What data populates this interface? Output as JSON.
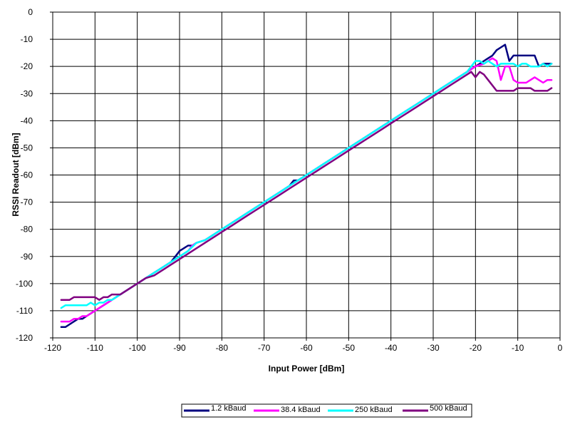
{
  "chart_data": {
    "type": "line",
    "title": "",
    "xlabel": "Input Power [dBm]",
    "ylabel": "RSSI Readout [dBm]",
    "xlim": [
      -120,
      0
    ],
    "ylim": [
      -120,
      0
    ],
    "x_ticks": [
      -120,
      -110,
      -100,
      -90,
      -80,
      -70,
      -60,
      -50,
      -40,
      -30,
      -20,
      -10,
      0
    ],
    "y_ticks": [
      0,
      -10,
      -20,
      -30,
      -40,
      -50,
      -60,
      -70,
      -80,
      -90,
      -100,
      -110,
      -120
    ],
    "grid": true,
    "legend_position": "bottom",
    "series": [
      {
        "name": "1.2 kBaud",
        "color": "#000080",
        "points": [
          [
            -118,
            -116
          ],
          [
            -117,
            -116
          ],
          [
            -116,
            -115
          ],
          [
            -115,
            -114
          ],
          [
            -114,
            -113
          ],
          [
            -113,
            -113
          ],
          [
            -112,
            -112
          ],
          [
            -111,
            -111
          ],
          [
            -110,
            -110
          ],
          [
            -108,
            -108
          ],
          [
            -106,
            -106
          ],
          [
            -104,
            -104
          ],
          [
            -102,
            -102
          ],
          [
            -100,
            -100
          ],
          [
            -98,
            -98
          ],
          [
            -96,
            -96
          ],
          [
            -94,
            -94
          ],
          [
            -92,
            -92
          ],
          [
            -91,
            -90
          ],
          [
            -90,
            -88
          ],
          [
            -89,
            -87
          ],
          [
            -88,
            -86
          ],
          [
            -87,
            -86
          ],
          [
            -86,
            -85
          ],
          [
            -84,
            -84
          ],
          [
            -82,
            -82
          ],
          [
            -80,
            -80
          ],
          [
            -78,
            -78
          ],
          [
            -76,
            -76
          ],
          [
            -74,
            -74
          ],
          [
            -72,
            -72
          ],
          [
            -70,
            -70
          ],
          [
            -68,
            -68
          ],
          [
            -66,
            -66
          ],
          [
            -64,
            -64
          ],
          [
            -63,
            -62
          ],
          [
            -62,
            -62
          ],
          [
            -61,
            -61
          ],
          [
            -60,
            -60
          ],
          [
            -58,
            -58
          ],
          [
            -56,
            -56
          ],
          [
            -54,
            -54
          ],
          [
            -52,
            -52
          ],
          [
            -50,
            -50
          ],
          [
            -48,
            -48
          ],
          [
            -46,
            -46
          ],
          [
            -44,
            -44
          ],
          [
            -42,
            -42
          ],
          [
            -40,
            -40
          ],
          [
            -38,
            -38
          ],
          [
            -36,
            -36
          ],
          [
            -34,
            -34
          ],
          [
            -32,
            -32
          ],
          [
            -30,
            -30
          ],
          [
            -28,
            -28
          ],
          [
            -26,
            -26
          ],
          [
            -24,
            -24
          ],
          [
            -22,
            -22
          ],
          [
            -21,
            -21
          ],
          [
            -20,
            -20
          ],
          [
            -19,
            -19
          ],
          [
            -18,
            -18
          ],
          [
            -17,
            -17
          ],
          [
            -16,
            -16
          ],
          [
            -15,
            -14
          ],
          [
            -14,
            -13
          ],
          [
            -13,
            -12
          ],
          [
            -12,
            -18
          ],
          [
            -11,
            -16
          ],
          [
            -10,
            -16
          ],
          [
            -9,
            -16
          ],
          [
            -8,
            -16
          ],
          [
            -7,
            -16
          ],
          [
            -6,
            -16
          ],
          [
            -5,
            -20
          ],
          [
            -4,
            -19
          ],
          [
            -3,
            -19
          ],
          [
            -2,
            -19
          ]
        ]
      },
      {
        "name": "38.4 kBaud",
        "color": "#FF00FF",
        "points": [
          [
            -118,
            -114
          ],
          [
            -116,
            -114
          ],
          [
            -115,
            -113
          ],
          [
            -114,
            -113
          ],
          [
            -113,
            -112
          ],
          [
            -112,
            -112
          ],
          [
            -110,
            -110
          ],
          [
            -108,
            -108
          ],
          [
            -106,
            -106
          ],
          [
            -104,
            -104
          ],
          [
            -102,
            -102
          ],
          [
            -100,
            -100
          ],
          [
            -98,
            -98
          ],
          [
            -96,
            -96
          ],
          [
            -94,
            -94
          ],
          [
            -92,
            -92
          ],
          [
            -90,
            -90
          ],
          [
            -88,
            -88
          ],
          [
            -87,
            -86
          ],
          [
            -86,
            -85
          ],
          [
            -84,
            -84
          ],
          [
            -82,
            -82
          ],
          [
            -80,
            -80
          ],
          [
            -78,
            -78
          ],
          [
            -76,
            -76
          ],
          [
            -74,
            -74
          ],
          [
            -72,
            -72
          ],
          [
            -70,
            -70
          ],
          [
            -68,
            -68
          ],
          [
            -66,
            -66
          ],
          [
            -64,
            -64
          ],
          [
            -62,
            -62
          ],
          [
            -60,
            -60
          ],
          [
            -58,
            -58
          ],
          [
            -56,
            -56
          ],
          [
            -54,
            -54
          ],
          [
            -52,
            -52
          ],
          [
            -50,
            -50
          ],
          [
            -48,
            -48
          ],
          [
            -46,
            -46
          ],
          [
            -44,
            -44
          ],
          [
            -42,
            -42
          ],
          [
            -40,
            -40
          ],
          [
            -38,
            -38
          ],
          [
            -36,
            -36
          ],
          [
            -34,
            -34
          ],
          [
            -32,
            -32
          ],
          [
            -30,
            -30
          ],
          [
            -28,
            -28
          ],
          [
            -26,
            -26
          ],
          [
            -24,
            -24
          ],
          [
            -22,
            -22
          ],
          [
            -20,
            -20
          ],
          [
            -18,
            -19
          ],
          [
            -17,
            -18
          ],
          [
            -16,
            -17
          ],
          [
            -15,
            -18
          ],
          [
            -14,
            -25
          ],
          [
            -13,
            -20
          ],
          [
            -12,
            -20
          ],
          [
            -11,
            -25
          ],
          [
            -10,
            -26
          ],
          [
            -9,
            -26
          ],
          [
            -8,
            -26
          ],
          [
            -7,
            -25
          ],
          [
            -6,
            -24
          ],
          [
            -5,
            -25
          ],
          [
            -4,
            -26
          ],
          [
            -3,
            -25
          ],
          [
            -2,
            -25
          ]
        ]
      },
      {
        "name": "250 kBaud",
        "color": "#00FFFF",
        "points": [
          [
            -118,
            -109
          ],
          [
            -117,
            -108
          ],
          [
            -116,
            -108
          ],
          [
            -114,
            -108
          ],
          [
            -112,
            -108
          ],
          [
            -111,
            -107
          ],
          [
            -110,
            -108
          ],
          [
            -109,
            -107
          ],
          [
            -108,
            -107
          ],
          [
            -107,
            -106
          ],
          [
            -106,
            -106
          ],
          [
            -104,
            -104
          ],
          [
            -102,
            -102
          ],
          [
            -100,
            -100
          ],
          [
            -98,
            -98
          ],
          [
            -96,
            -96
          ],
          [
            -94,
            -94
          ],
          [
            -92,
            -92
          ],
          [
            -90,
            -90
          ],
          [
            -88,
            -88
          ],
          [
            -86,
            -85
          ],
          [
            -84,
            -84
          ],
          [
            -82,
            -82
          ],
          [
            -80,
            -80
          ],
          [
            -78,
            -78
          ],
          [
            -76,
            -76
          ],
          [
            -74,
            -74
          ],
          [
            -72,
            -72
          ],
          [
            -70,
            -70
          ],
          [
            -68,
            -68
          ],
          [
            -66,
            -66
          ],
          [
            -64,
            -64
          ],
          [
            -62,
            -62
          ],
          [
            -60,
            -60
          ],
          [
            -58,
            -58
          ],
          [
            -56,
            -56
          ],
          [
            -54,
            -54
          ],
          [
            -52,
            -52
          ],
          [
            -50,
            -50
          ],
          [
            -48,
            -48
          ],
          [
            -46,
            -46
          ],
          [
            -44,
            -44
          ],
          [
            -42,
            -42
          ],
          [
            -40,
            -40
          ],
          [
            -38,
            -38
          ],
          [
            -36,
            -36
          ],
          [
            -34,
            -34
          ],
          [
            -32,
            -32
          ],
          [
            -30,
            -30
          ],
          [
            -28,
            -28
          ],
          [
            -26,
            -26
          ],
          [
            -24,
            -24
          ],
          [
            -22,
            -22
          ],
          [
            -21,
            -20
          ],
          [
            -20,
            -18
          ],
          [
            -19,
            -18
          ],
          [
            -18,
            -19
          ],
          [
            -17,
            -18
          ],
          [
            -16,
            -19
          ],
          [
            -15,
            -20
          ],
          [
            -14,
            -19
          ],
          [
            -13,
            -19
          ],
          [
            -12,
            -19
          ],
          [
            -11,
            -19
          ],
          [
            -10,
            -20
          ],
          [
            -9,
            -19
          ],
          [
            -8,
            -19
          ],
          [
            -7,
            -20
          ],
          [
            -6,
            -20
          ],
          [
            -5,
            -20
          ],
          [
            -4,
            -19
          ],
          [
            -3,
            -20
          ],
          [
            -2,
            -19
          ]
        ]
      },
      {
        "name": "500 kBaud",
        "color": "#800080",
        "points": [
          [
            -118,
            -106
          ],
          [
            -116,
            -106
          ],
          [
            -115,
            -105
          ],
          [
            -114,
            -105
          ],
          [
            -113,
            -105
          ],
          [
            -112,
            -105
          ],
          [
            -111,
            -105
          ],
          [
            -110,
            -105
          ],
          [
            -109,
            -106
          ],
          [
            -108,
            -105
          ],
          [
            -107,
            -105
          ],
          [
            -106,
            -104
          ],
          [
            -105,
            -104
          ],
          [
            -104,
            -104
          ],
          [
            -102,
            -102
          ],
          [
            -100,
            -100
          ],
          [
            -98,
            -98
          ],
          [
            -96,
            -97
          ],
          [
            -94,
            -95
          ],
          [
            -92,
            -93
          ],
          [
            -90,
            -91
          ],
          [
            -88,
            -89
          ],
          [
            -86,
            -87
          ],
          [
            -84,
            -85
          ],
          [
            -82,
            -83
          ],
          [
            -80,
            -81
          ],
          [
            -78,
            -79
          ],
          [
            -76,
            -77
          ],
          [
            -74,
            -75
          ],
          [
            -72,
            -73
          ],
          [
            -70,
            -71
          ],
          [
            -68,
            -69
          ],
          [
            -66,
            -67
          ],
          [
            -64,
            -65
          ],
          [
            -62,
            -63
          ],
          [
            -60,
            -61
          ],
          [
            -58,
            -59
          ],
          [
            -56,
            -57
          ],
          [
            -54,
            -55
          ],
          [
            -52,
            -53
          ],
          [
            -50,
            -51
          ],
          [
            -48,
            -49
          ],
          [
            -46,
            -47
          ],
          [
            -44,
            -45
          ],
          [
            -42,
            -43
          ],
          [
            -40,
            -41
          ],
          [
            -38,
            -39
          ],
          [
            -36,
            -37
          ],
          [
            -34,
            -35
          ],
          [
            -32,
            -33
          ],
          [
            -30,
            -31
          ],
          [
            -28,
            -29
          ],
          [
            -26,
            -27
          ],
          [
            -24,
            -25
          ],
          [
            -22,
            -23
          ],
          [
            -21,
            -22
          ],
          [
            -20,
            -24
          ],
          [
            -19,
            -22
          ],
          [
            -18,
            -23
          ],
          [
            -17,
            -25
          ],
          [
            -16,
            -27
          ],
          [
            -15,
            -29
          ],
          [
            -14,
            -29
          ],
          [
            -13,
            -29
          ],
          [
            -12,
            -29
          ],
          [
            -11,
            -29
          ],
          [
            -10,
            -28
          ],
          [
            -9,
            -28
          ],
          [
            -8,
            -28
          ],
          [
            -7,
            -28
          ],
          [
            -6,
            -29
          ],
          [
            -5,
            -29
          ],
          [
            -4,
            -29
          ],
          [
            -3,
            -29
          ],
          [
            -2,
            -28
          ]
        ]
      }
    ]
  }
}
